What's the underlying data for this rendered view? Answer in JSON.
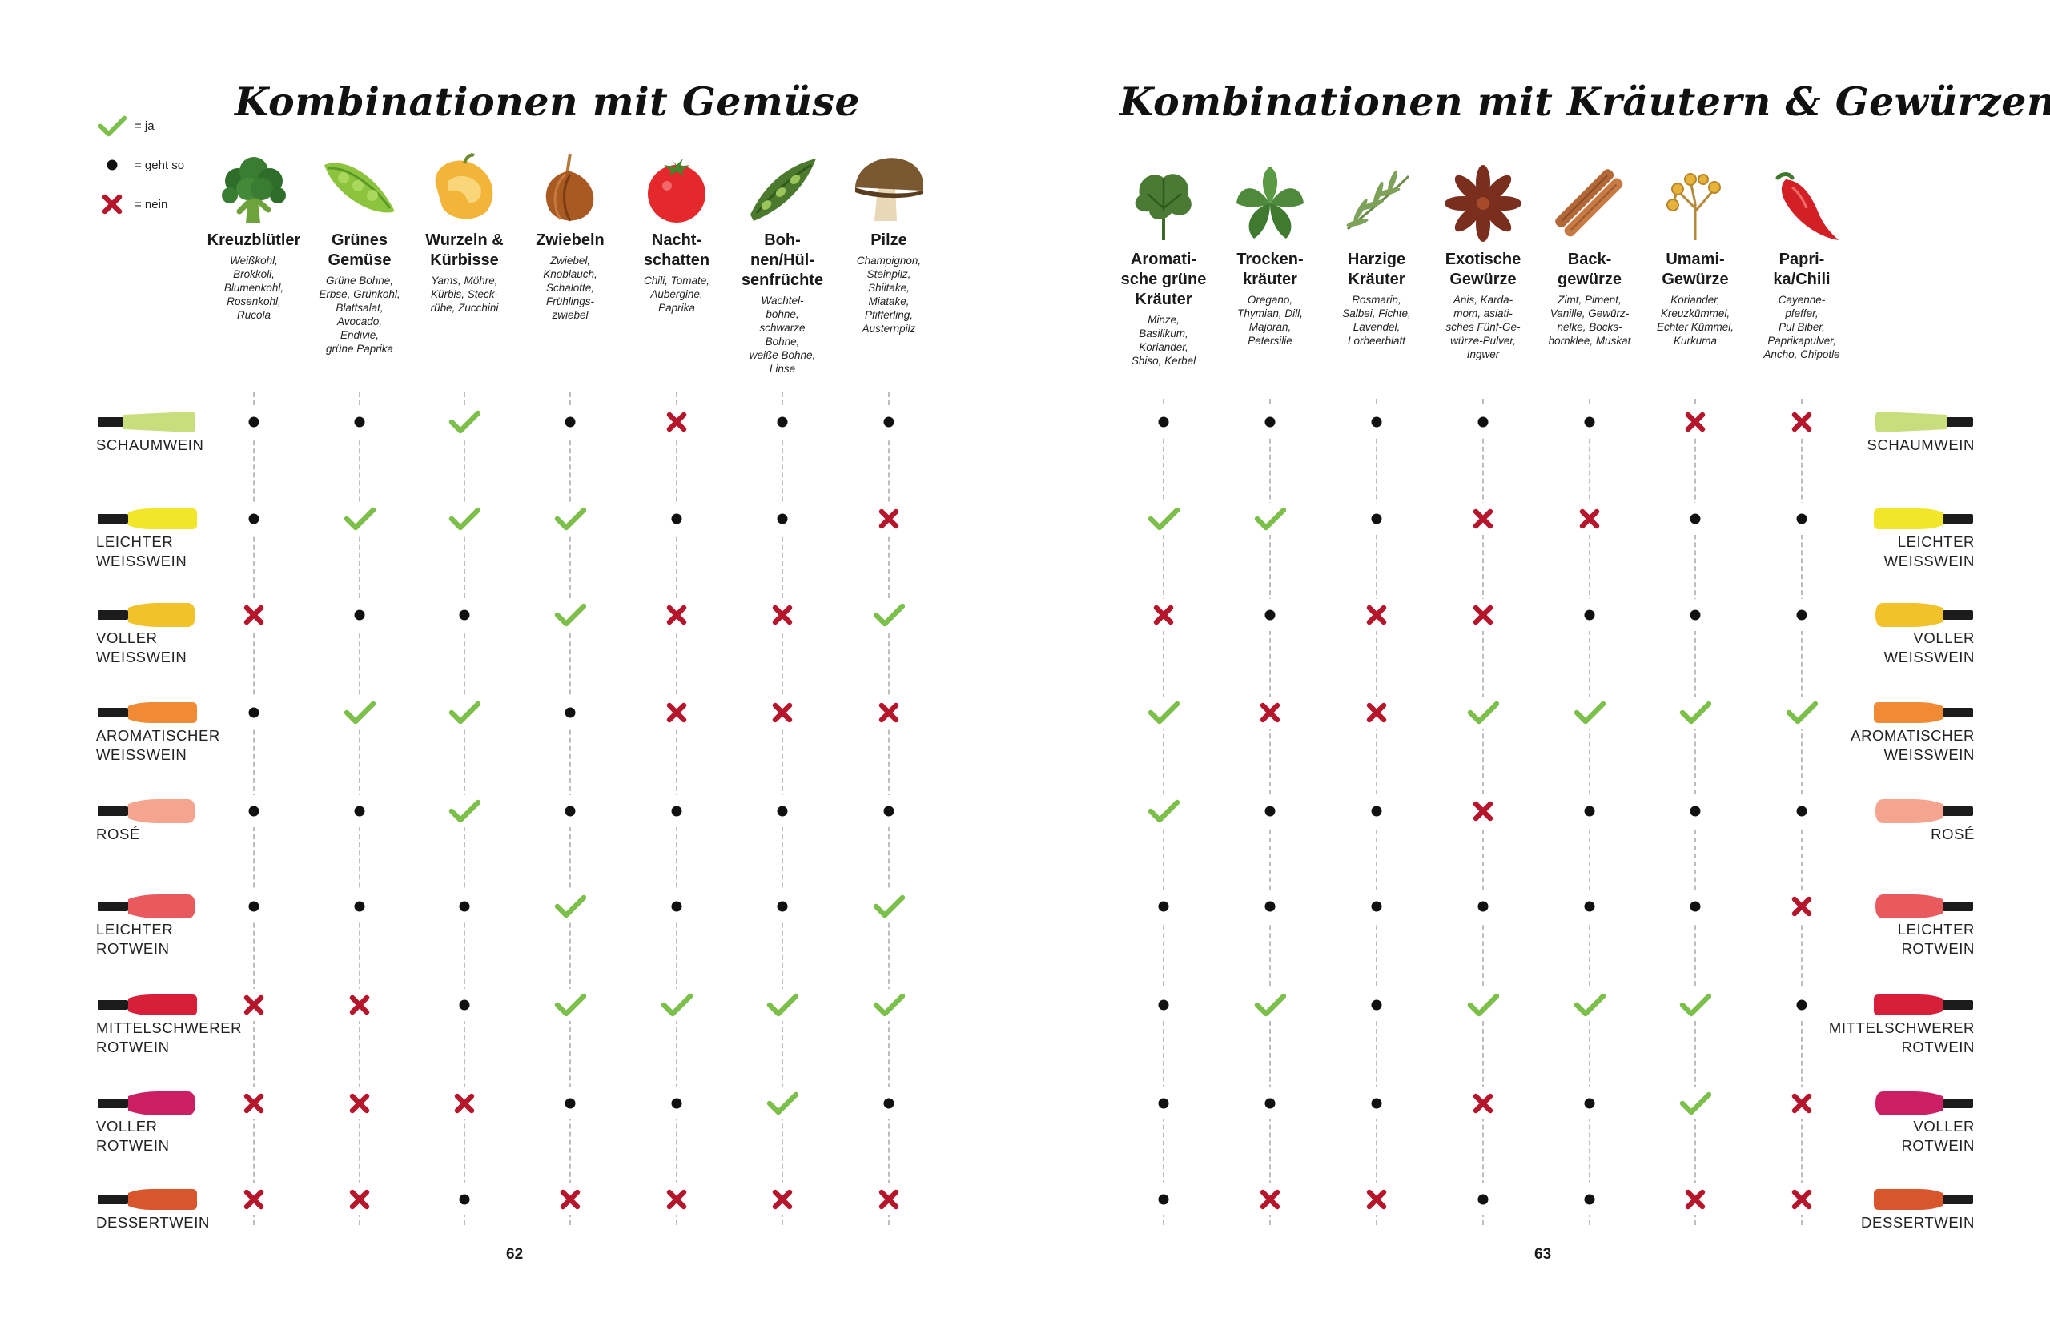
{
  "left": {
    "title": "Kombinationen mit Gemüse",
    "page_number": "62",
    "legend": [
      {
        "symbol": "check",
        "label": "= ja"
      },
      {
        "symbol": "dot",
        "label": "= geht so"
      },
      {
        "symbol": "cross",
        "label": "= nein"
      }
    ],
    "columns": [
      {
        "name": "Kreuzblütler",
        "desc": "Weißkohl,\nBrokkoli,\nBlumenkohl,\nRosenkohl,\nRucola",
        "icon": "broccoli-icon"
      },
      {
        "name": "Grünes\nGemüse",
        "desc": "Grüne Bohne,\nErbse, Grünkohl,\nBlattsalat,\nAvocado,\nEndivie,\ngrüne Paprika",
        "icon": "pea-pod-icon"
      },
      {
        "name": "Wurzeln &\nKürbisse",
        "desc": "Yams, Möhre,\nKürbis, Steck-\nrübe, Zucchini",
        "icon": "pumpkin-icon"
      },
      {
        "name": "Zwiebeln",
        "desc": "Zwiebel,\nKnoblauch,\nSchalotte,\nFrühlings-\nzwiebel",
        "icon": "onion-icon"
      },
      {
        "name": "Nacht-\nschatten",
        "desc": "Chili, Tomate,\nAubergine,\nPaprika",
        "icon": "tomato-icon"
      },
      {
        "name": "Boh-\nnen/Hül-\nsenfrüchte",
        "desc": "Wachtel-\nbohne,\nschwarze\nBohne,\nweiße Bohne,\nLinse",
        "icon": "bean-pod-icon"
      },
      {
        "name": "Pilze",
        "desc": "Champignon,\nSteinpilz,\nShiitake,\nMiatake,\nPfifferling,\nAusternpilz",
        "icon": "mushroom-icon"
      }
    ],
    "matrix": [
      [
        "dot",
        "dot",
        "check",
        "dot",
        "cross",
        "dot",
        "dot"
      ],
      [
        "dot",
        "check",
        "check",
        "check",
        "dot",
        "dot",
        "cross"
      ],
      [
        "cross",
        "dot",
        "dot",
        "check",
        "cross",
        "cross",
        "check"
      ],
      [
        "dot",
        "check",
        "check",
        "dot",
        "cross",
        "cross",
        "cross"
      ],
      [
        "dot",
        "dot",
        "check",
        "dot",
        "dot",
        "dot",
        "dot"
      ],
      [
        "dot",
        "dot",
        "dot",
        "check",
        "dot",
        "dot",
        "check"
      ],
      [
        "cross",
        "cross",
        "dot",
        "check",
        "check",
        "check",
        "check"
      ],
      [
        "cross",
        "cross",
        "cross",
        "dot",
        "dot",
        "check",
        "dot"
      ],
      [
        "cross",
        "cross",
        "dot",
        "cross",
        "cross",
        "cross",
        "cross"
      ]
    ]
  },
  "right": {
    "title": "Kombinationen mit Kräutern & Gewürzen",
    "page_number": "63",
    "columns": [
      {
        "name": "Aromati-\nsche grüne\nKräuter",
        "desc": "Minze,\nBasilikum,\nKoriander,\nShiso, Kerbel",
        "icon": "parsley-icon"
      },
      {
        "name": "Trocken-\nkräuter",
        "desc": "Oregano,\nThymian, Dill,\nMajoran,\nPetersilie",
        "icon": "oregano-leaf-icon"
      },
      {
        "name": "Harzige\nKräuter",
        "desc": "Rosmarin,\nSalbei, Fichte,\nLavendel,\nLorbeerblatt",
        "icon": "rosemary-icon"
      },
      {
        "name": "Exotische\nGewürze",
        "desc": "Anis, Karda-\nmom, asiati-\nsches Fünf-Ge-\nwürze-Pulver,\nIngwer",
        "icon": "star-anise-icon"
      },
      {
        "name": "Back-\ngewürze",
        "desc": "Zimt, Piment,\nVanille, Gewürz-\nnelke, Bocks-\nhornklee, Muskat",
        "icon": "cinnamon-icon"
      },
      {
        "name": "Umami-\nGewürze",
        "desc": "Koriander,\nKreuzkümmel,\nEchter Kümmel,\nKurkuma",
        "icon": "coriander-seeds-icon"
      },
      {
        "name": "Papri-\nka/Chili",
        "desc": "Cayenne-\npfeffer,\nPul Biber,\nPaprikapulver,\nAncho, Chipotle",
        "icon": "chili-icon"
      }
    ],
    "matrix": [
      [
        "dot",
        "dot",
        "dot",
        "dot",
        "dot",
        "cross",
        "cross"
      ],
      [
        "check",
        "check",
        "dot",
        "cross",
        "cross",
        "dot",
        "dot"
      ],
      [
        "cross",
        "dot",
        "cross",
        "cross",
        "dot",
        "dot",
        "dot"
      ],
      [
        "check",
        "cross",
        "cross",
        "check",
        "check",
        "check",
        "check"
      ],
      [
        "check",
        "dot",
        "dot",
        "cross",
        "dot",
        "dot",
        "dot"
      ],
      [
        "dot",
        "dot",
        "dot",
        "dot",
        "dot",
        "dot",
        "cross"
      ],
      [
        "dot",
        "check",
        "dot",
        "check",
        "check",
        "check",
        "dot"
      ],
      [
        "dot",
        "dot",
        "dot",
        "cross",
        "dot",
        "check",
        "cross"
      ],
      [
        "dot",
        "cross",
        "cross",
        "dot",
        "dot",
        "cross",
        "cross"
      ]
    ]
  },
  "wines": [
    {
      "label": "SCHAUMWEIN",
      "color": "#c8de7c",
      "shape": "flute"
    },
    {
      "label": "LEICHTER\nWEISSWEIN",
      "color": "#f2e62a",
      "shape": "still"
    },
    {
      "label": "VOLLER\nWEISSWEIN",
      "color": "#f2c22a",
      "shape": "round"
    },
    {
      "label": "AROMATISCHER\nWEISSWEIN",
      "color": "#f08a35",
      "shape": "still"
    },
    {
      "label": "ROSÉ",
      "color": "#f5a58f",
      "shape": "round"
    },
    {
      "label": "LEICHTER\nROTWEIN",
      "color": "#e85a5e",
      "shape": "round"
    },
    {
      "label": "MITTELSCHWERER\nROTWEIN",
      "color": "#d81f3a",
      "shape": "still"
    },
    {
      "label": "VOLLER\nROTWEIN",
      "color": "#cc1f63",
      "shape": "round"
    },
    {
      "label": "DESSERTWEIN",
      "color": "#d9552c",
      "shape": "still"
    }
  ],
  "colors": {
    "check": "#7cbf4a",
    "cross": "#b5162c",
    "dot": "#111111",
    "guide": "#bdbdbd"
  }
}
